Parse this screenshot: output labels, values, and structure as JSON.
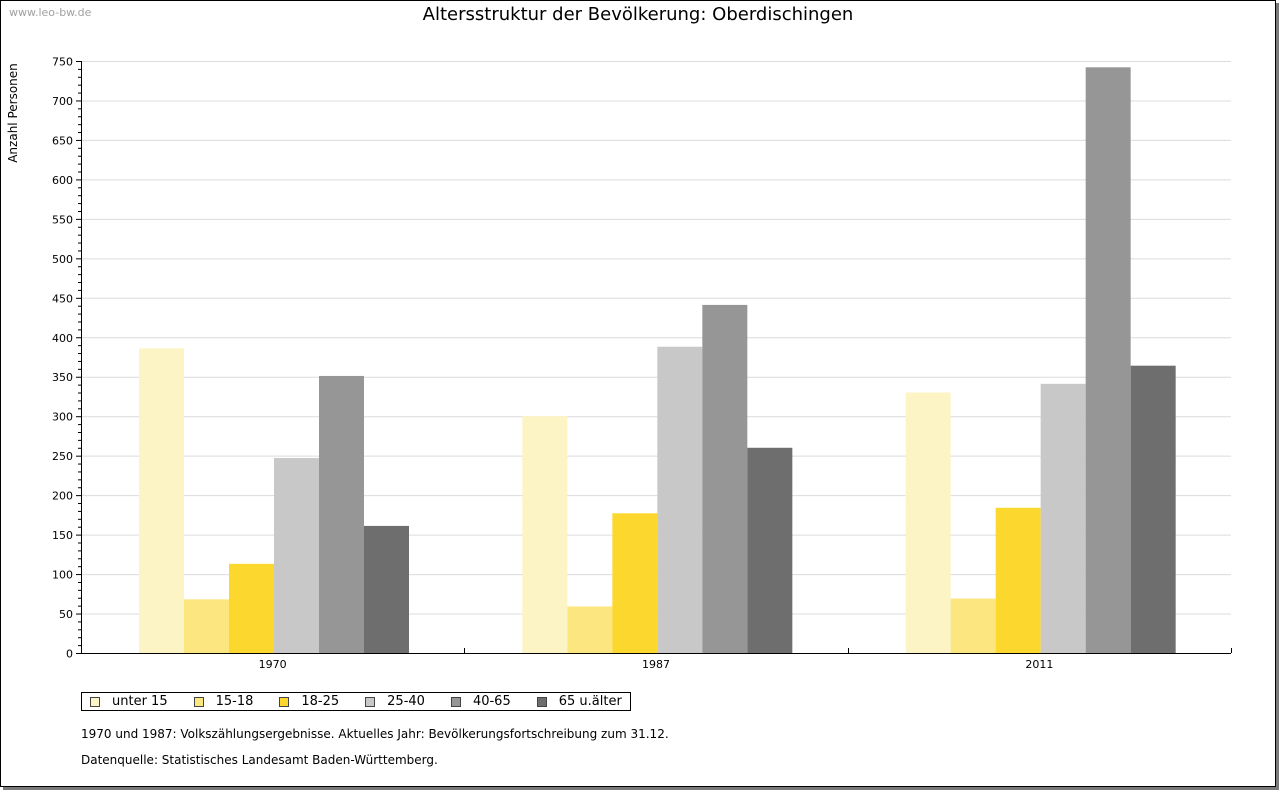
{
  "watermark": "www.leo-bw.de",
  "chart_data": {
    "type": "bar",
    "title": "Altersstruktur der Bevölkerung: Oberdischingen",
    "xlabel": "",
    "ylabel": "Anzahl Personen",
    "ylim": [
      0,
      750
    ],
    "yticks": [
      0,
      50,
      100,
      150,
      200,
      250,
      300,
      350,
      400,
      450,
      500,
      550,
      600,
      650,
      700,
      750
    ],
    "grid": true,
    "legend_position": "bottom-left",
    "categories": [
      "1970",
      "1987",
      "2011"
    ],
    "series": [
      {
        "name": "unter 15",
        "color": "#fcf4c4",
        "values": [
          386,
          300,
          330
        ]
      },
      {
        "name": "15-18",
        "color": "#fce680",
        "values": [
          68,
          59,
          69
        ]
      },
      {
        "name": "18-25",
        "color": "#fcd82e",
        "values": [
          113,
          177,
          184
        ]
      },
      {
        "name": "25-40",
        "color": "#c8c8c8",
        "values": [
          247,
          388,
          341
        ]
      },
      {
        "name": "40-65",
        "color": "#969696",
        "values": [
          351,
          441,
          742
        ]
      },
      {
        "name": "65 u.älter",
        "color": "#6e6e6e",
        "values": [
          161,
          260,
          364
        ]
      }
    ]
  },
  "notes": {
    "line1": "1970 und 1987: Volkszählungsergebnisse. Aktuelles Jahr: Bevölkerungsfortschreibung zum 31.12.",
    "line2": "Datenquelle: Statistisches Landesamt Baden-Württemberg."
  }
}
